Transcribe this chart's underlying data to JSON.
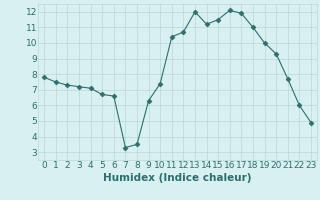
{
  "x": [
    0,
    1,
    2,
    3,
    4,
    5,
    6,
    7,
    8,
    9,
    10,
    11,
    12,
    13,
    14,
    15,
    16,
    17,
    18,
    19,
    20,
    21,
    22,
    23
  ],
  "y": [
    7.8,
    7.5,
    7.3,
    7.2,
    7.1,
    6.7,
    6.6,
    3.3,
    3.5,
    6.3,
    7.4,
    10.4,
    10.7,
    12.0,
    11.2,
    11.5,
    12.1,
    11.9,
    11.0,
    10.0,
    9.3,
    7.7,
    6.0,
    4.9
  ],
  "xlabel": "Humidex (Indice chaleur)",
  "xlim": [
    -0.5,
    23.5
  ],
  "ylim": [
    2.5,
    12.5
  ],
  "yticks": [
    3,
    4,
    5,
    6,
    7,
    8,
    9,
    10,
    11,
    12
  ],
  "xticks": [
    0,
    1,
    2,
    3,
    4,
    5,
    6,
    7,
    8,
    9,
    10,
    11,
    12,
    13,
    14,
    15,
    16,
    17,
    18,
    19,
    20,
    21,
    22,
    23
  ],
  "line_color": "#2d6e6e",
  "marker": "D",
  "marker_size": 2.5,
  "bg_color": "#d8f0f0",
  "grid_color": "#b8d8d8",
  "tick_label_fontsize": 6.5,
  "xlabel_fontsize": 7.5
}
